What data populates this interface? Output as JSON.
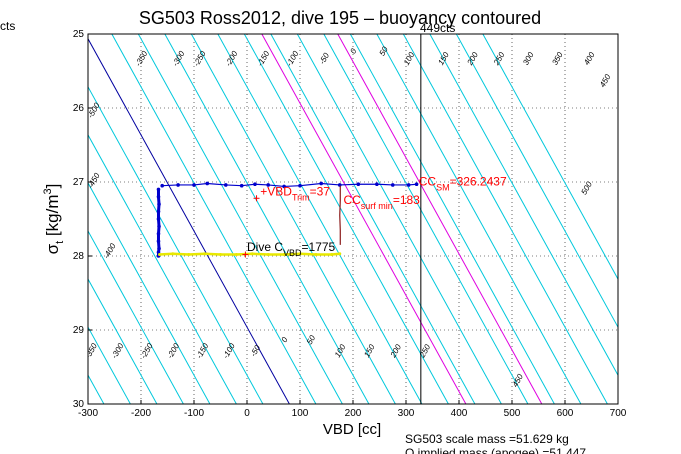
{
  "figure": {
    "title": "SG503 Ross2012, dive 195 – buoyancy contoured",
    "corner_label": "cts",
    "top_label": "449cts",
    "footer_line1": "SG503 scale mass =51.629 kg",
    "footer_line2": "O   implied mass (apogee) =51.447"
  },
  "chart_data": {
    "type": "line",
    "title": "SG503 Ross2012, dive 195 – buoyancy contoured",
    "xlabel": "VBD [cc]",
    "ylabel": "σt [kg/m3]",
    "xlim": [
      -300,
      700
    ],
    "ylim": [
      30,
      25
    ],
    "y_reversed": true,
    "grid": true,
    "xticks": [
      -300,
      -200,
      -100,
      0,
      100,
      200,
      300,
      400,
      500,
      600,
      700
    ],
    "yticks": [
      25,
      26,
      27,
      28,
      29,
      30
    ],
    "contours": {
      "cyan_levels": [
        -550,
        -500,
        -450,
        -400,
        -350,
        -300,
        -250,
        -200,
        -150,
        -100,
        -50,
        50,
        100,
        150,
        200,
        250,
        300,
        350,
        400,
        450,
        500,
        550,
        600,
        650,
        700,
        750
      ],
      "zero_buoyancy": 0,
      "magenta_levels": [
        -326.2437,
        -183
      ],
      "colors": {
        "cyan": "#00c8dc",
        "zero": "#0000a0",
        "magenta": "#e000e0"
      },
      "labels": [
        {
          "text": "-350",
          "x": -195,
          "y": 25.35
        },
        {
          "text": "-300",
          "x": -125,
          "y": 25.35
        },
        {
          "text": "-250",
          "x": -85,
          "y": 25.35
        },
        {
          "text": "-200",
          "x": -25,
          "y": 25.35
        },
        {
          "text": "-150",
          "x": 35,
          "y": 25.35
        },
        {
          "text": "-100",
          "x": 90,
          "y": 25.35
        },
        {
          "text": "-50",
          "x": 150,
          "y": 25.35
        },
        {
          "text": "0",
          "x": 205,
          "y": 25.25
        },
        {
          "text": "50",
          "x": 262,
          "y": 25.25
        },
        {
          "text": "100",
          "x": 310,
          "y": 25.35
        },
        {
          "text": "150",
          "x": 375,
          "y": 25.35
        },
        {
          "text": "200",
          "x": 430,
          "y": 25.35
        },
        {
          "text": "250",
          "x": 480,
          "y": 25.35
        },
        {
          "text": "300",
          "x": 535,
          "y": 25.35
        },
        {
          "text": "350",
          "x": 590,
          "y": 25.35
        },
        {
          "text": "400",
          "x": 650,
          "y": 25.35
        },
        {
          "text": "450",
          "x": 680,
          "y": 25.65
        },
        {
          "text": "-500",
          "x": -285,
          "y": 26.05
        },
        {
          "text": "-450",
          "x": -285,
          "y": 27.0
        },
        {
          "text": "-400",
          "x": -255,
          "y": 27.95
        },
        {
          "text": "500",
          "x": 645,
          "y": 27.1
        },
        {
          "text": "-350",
          "x": -290,
          "y": 29.3
        },
        {
          "text": "-300",
          "x": -240,
          "y": 29.3
        },
        {
          "text": "-250",
          "x": -185,
          "y": 29.3
        },
        {
          "text": "-200",
          "x": -135,
          "y": 29.3
        },
        {
          "text": "-150",
          "x": -80,
          "y": 29.3
        },
        {
          "text": "-100",
          "x": -30,
          "y": 29.3
        },
        {
          "text": "-50",
          "x": 20,
          "y": 29.3
        },
        {
          "text": "0",
          "x": 75,
          "y": 29.15
        },
        {
          "text": "50",
          "x": 125,
          "y": 29.15
        },
        {
          "text": "100",
          "x": 180,
          "y": 29.3
        },
        {
          "text": "150",
          "x": 235,
          "y": 29.3
        },
        {
          "text": "200",
          "x": 285,
          "y": 29.3
        },
        {
          "text": "250",
          "x": 340,
          "y": 29.3
        },
        {
          "text": "450",
          "x": 515,
          "y": 29.7
        }
      ]
    },
    "vertical_line": {
      "x": 328,
      "color": "#000000"
    },
    "series": [
      {
        "name": "dive",
        "color": "#0000cc",
        "x": [
          -160,
          -130,
          -100,
          -75,
          -40,
          -10,
          15,
          40,
          70,
          100,
          140,
          175,
          210,
          245,
          275,
          305,
          320
        ],
        "y": [
          27.05,
          27.04,
          27.04,
          27.02,
          27.04,
          27.05,
          27.03,
          27.04,
          27.06,
          27.05,
          27.02,
          27.04,
          27.03,
          27.03,
          27.04,
          27.04,
          27.03
        ]
      },
      {
        "name": "descent",
        "color": "#0000cc",
        "x": [
          -167,
          -167,
          -166,
          -167,
          -167,
          -166,
          -167,
          -167,
          -166,
          -167,
          -167
        ],
        "y": [
          27.1,
          27.2,
          27.3,
          27.4,
          27.5,
          27.6,
          27.7,
          27.8,
          27.9,
          27.95,
          28.0
        ]
      },
      {
        "name": "bottom",
        "color": "#e8e800",
        "x": [
          -165,
          -140,
          -110,
          -80,
          -50,
          -20,
          10,
          40,
          70,
          100,
          130,
          160,
          175
        ],
        "y": [
          27.98,
          27.97,
          27.98,
          27.97,
          27.98,
          27.98,
          27.97,
          27.98,
          27.98,
          27.97,
          27.98,
          27.98,
          27.97
        ]
      },
      {
        "name": "ascent",
        "color": "#8b1a1a",
        "x": [
          176,
          176,
          175,
          176,
          176
        ],
        "y": [
          27.05,
          27.25,
          27.45,
          27.65,
          27.85
        ]
      }
    ],
    "annotations": [
      {
        "key": "vbd_trim",
        "x": 25,
        "y": 27.18,
        "text": "+VBD",
        "sub": "Trim",
        "suffix": "=37",
        "color": "#ff0000"
      },
      {
        "key": "cc_surf",
        "x": 182,
        "y": 27.3,
        "text": "CC",
        "sub": "surf min",
        "suffix": "=183",
        "color": "#ff0000"
      },
      {
        "key": "cc_sm",
        "x": 324,
        "y": 27.05,
        "text": "CC",
        "sub": "SM",
        "suffix": "=326.2437",
        "color": "#ff0000"
      },
      {
        "key": "dive_c",
        "x": 0,
        "y": 27.93,
        "text": "Dive C",
        "sub": "VBD",
        "suffix": "=1775",
        "color": "#000000"
      }
    ],
    "markers": [
      {
        "x": 18,
        "y": 27.22,
        "color": "#ff0000"
      },
      {
        "x": -3,
        "y": 27.98,
        "color": "#ff0000"
      }
    ]
  }
}
